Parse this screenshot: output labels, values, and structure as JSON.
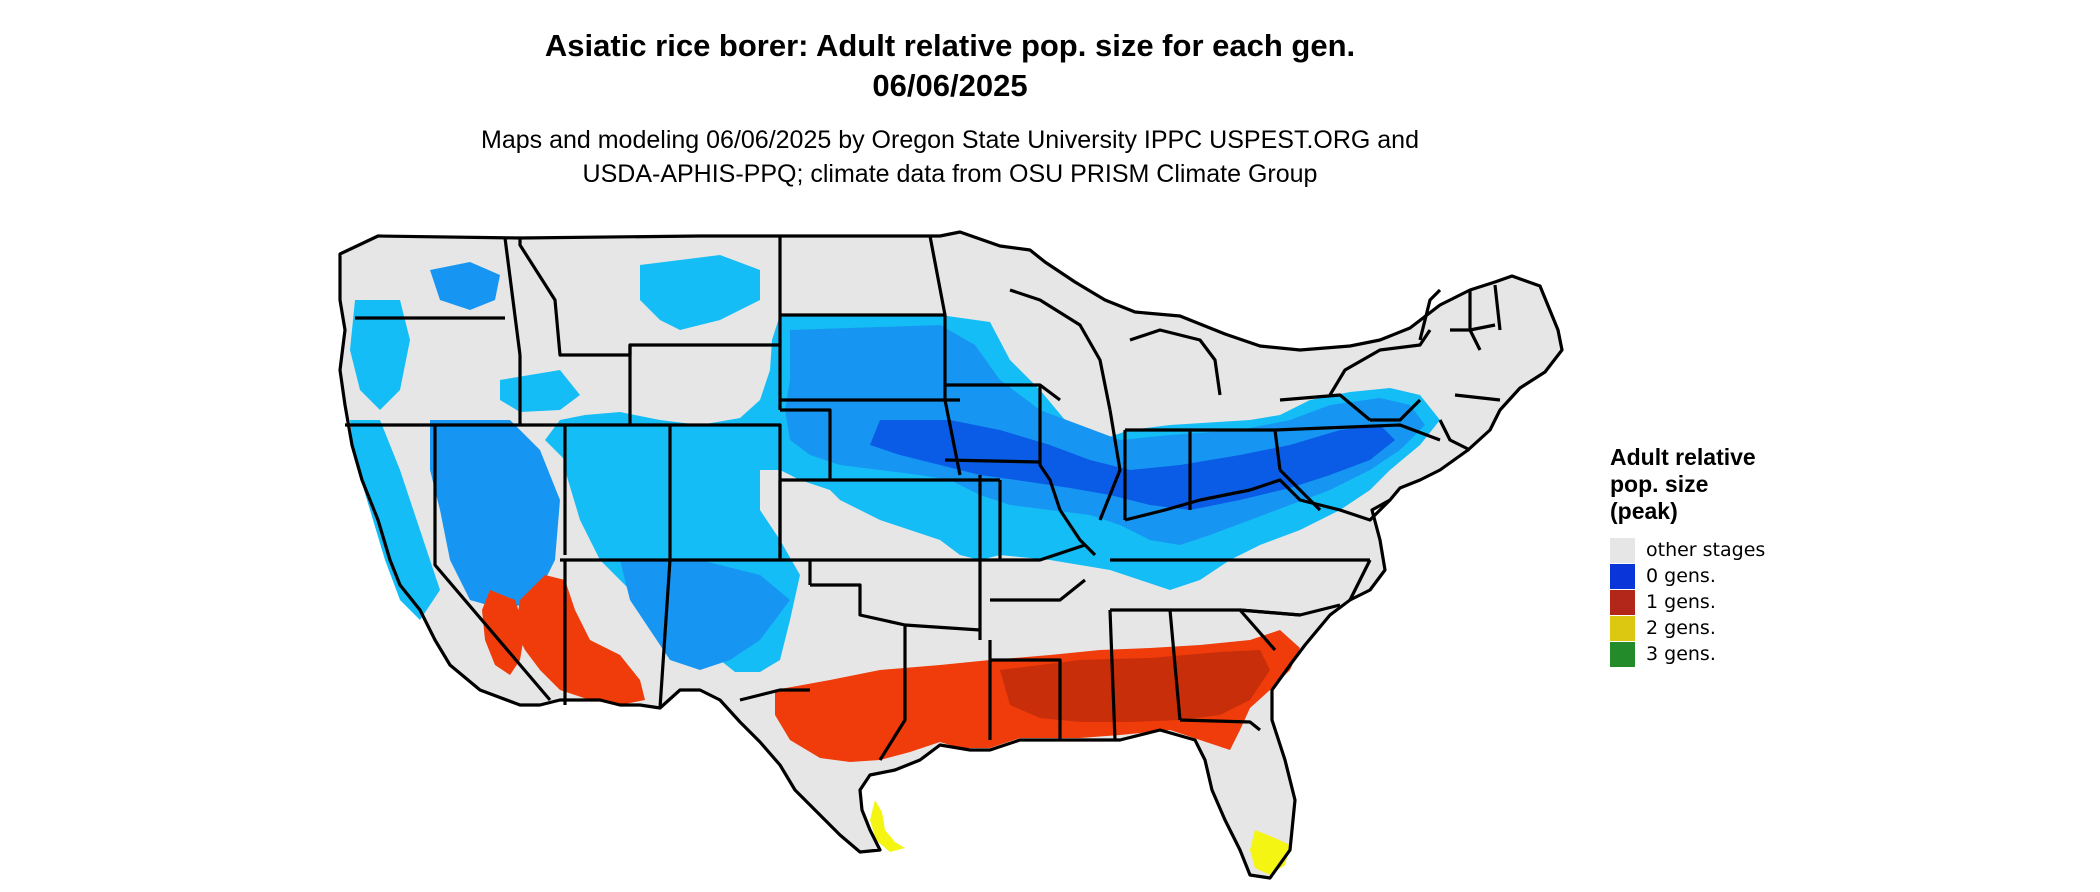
{
  "title": {
    "line1": "Asiatic rice borer: Adult relative pop. size for each gen.",
    "line2": "06/06/2025"
  },
  "subtitle": {
    "line1": "Maps and modeling 06/06/2025 by Oregon State University IPPC USPEST.ORG and",
    "line2": "USDA-APHIS-PPQ; climate data from OSU PRISM Climate Group"
  },
  "legend": {
    "title_line1": "Adult relative",
    "title_line2": "pop. size",
    "title_line3": "(peak)",
    "items": [
      {
        "label": "other stages",
        "color": "#e6e6e6"
      },
      {
        "label": "0 gens.",
        "color": "#0a35d9"
      },
      {
        "label": "1 gens.",
        "color": "#b3261a"
      },
      {
        "label": "2 gens.",
        "color": "#dcc810"
      },
      {
        "label": "3 gens.",
        "color": "#238b2a"
      }
    ]
  },
  "map": {
    "colors": {
      "background": "#e6e6e6",
      "border": "#000000",
      "light_blue": "#14bdf5",
      "mid_blue": "#1696f2",
      "dark_blue": "#0a5ce6",
      "orange": "#f03c0a",
      "dark_orange": "#c82e0a",
      "yellow": "#f5f514"
    }
  }
}
